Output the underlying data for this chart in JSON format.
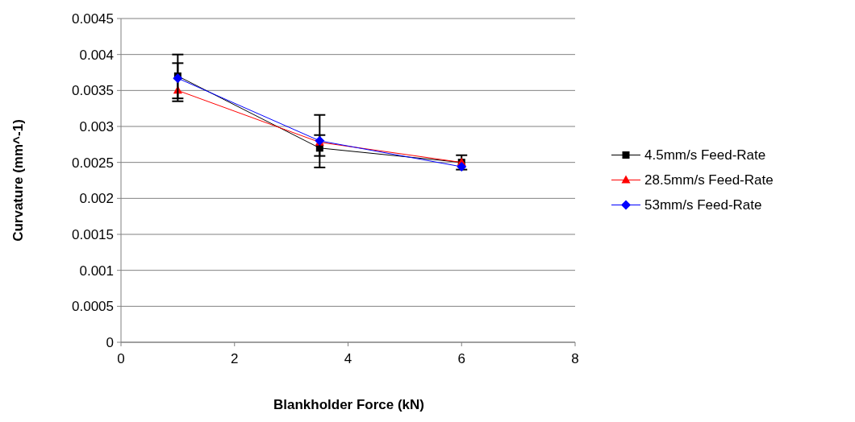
{
  "chart_data": {
    "type": "line",
    "xlabel": "Blankholder Force (kN)",
    "ylabel": "Curvature (mm^-1)",
    "x": [
      1,
      3.5,
      6
    ],
    "xlim": [
      0,
      8
    ],
    "xticks": [
      0,
      2,
      4,
      6,
      8
    ],
    "ylim": [
      0,
      0.0045
    ],
    "yticks": [
      0,
      0.0005,
      0.001,
      0.0015,
      0.002,
      0.0025,
      0.003,
      0.0035,
      0.004,
      0.0045
    ],
    "grid": "y",
    "legend": "right",
    "series": [
      {
        "name": "4.5mm/s Feed-Rate",
        "color": "#000000",
        "marker": "square",
        "values": [
          0.0037,
          0.0027,
          0.0025
        ],
        "errors": [
          [
            0.00335,
            0.004
          ],
          [
            0.00243,
            0.00316
          ],
          [
            0.0024,
            0.0026
          ]
        ]
      },
      {
        "name": "28.5mm/s Feed-Rate",
        "color": "#ff0000",
        "marker": "triangle",
        "values": [
          0.0035,
          0.00278,
          0.0025
        ]
      },
      {
        "name": "53mm/s Feed-Rate",
        "color": "#0000ff",
        "marker": "diamond",
        "values": [
          0.00367,
          0.0028,
          0.00244
        ],
        "errors": [
          [
            0.00339,
            0.00388
          ],
          [
            0.00259,
            0.00288
          ],
          null
        ]
      }
    ]
  }
}
